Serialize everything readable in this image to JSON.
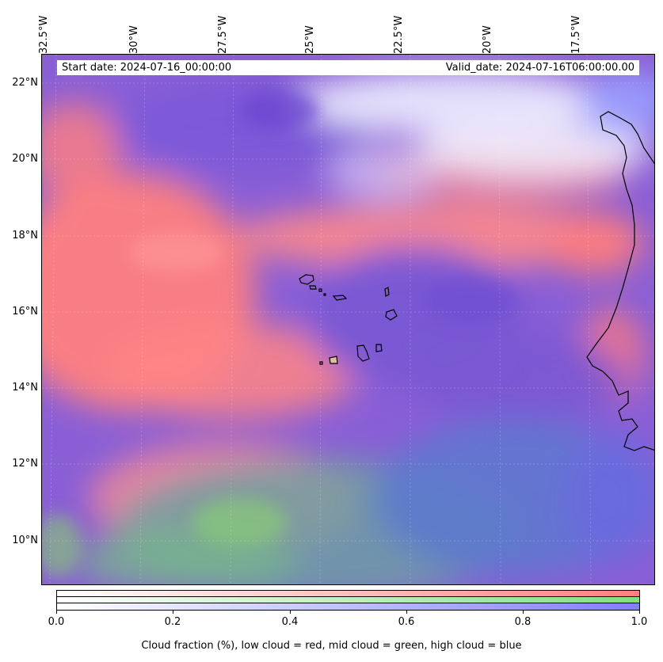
{
  "map": {
    "start_date": "Start date: 2024-07-16_00:00:00",
    "valid_date": "Valid_date: 2024-07-16T06:00:00.00",
    "lon_labels": [
      "32.5°W",
      "30°W",
      "27.5°W",
      "25°W",
      "22.5°W",
      "20°W",
      "17.5°W"
    ],
    "lat_labels": [
      "22°N",
      "20°N",
      "18°N",
      "16°N",
      "14°N",
      "12°N",
      "10°N"
    ],
    "colors": {
      "low_cloud": "#ff7f7f",
      "mid_cloud": "#7fe07f",
      "high_cloud": "#7f7fff"
    }
  },
  "colorbar": {
    "ticks": [
      "0.0",
      "0.2",
      "0.4",
      "0.6",
      "0.8",
      "1.0"
    ],
    "caption": "Cloud fraction (%), low cloud = red, mid cloud = green, high cloud = blue"
  }
}
